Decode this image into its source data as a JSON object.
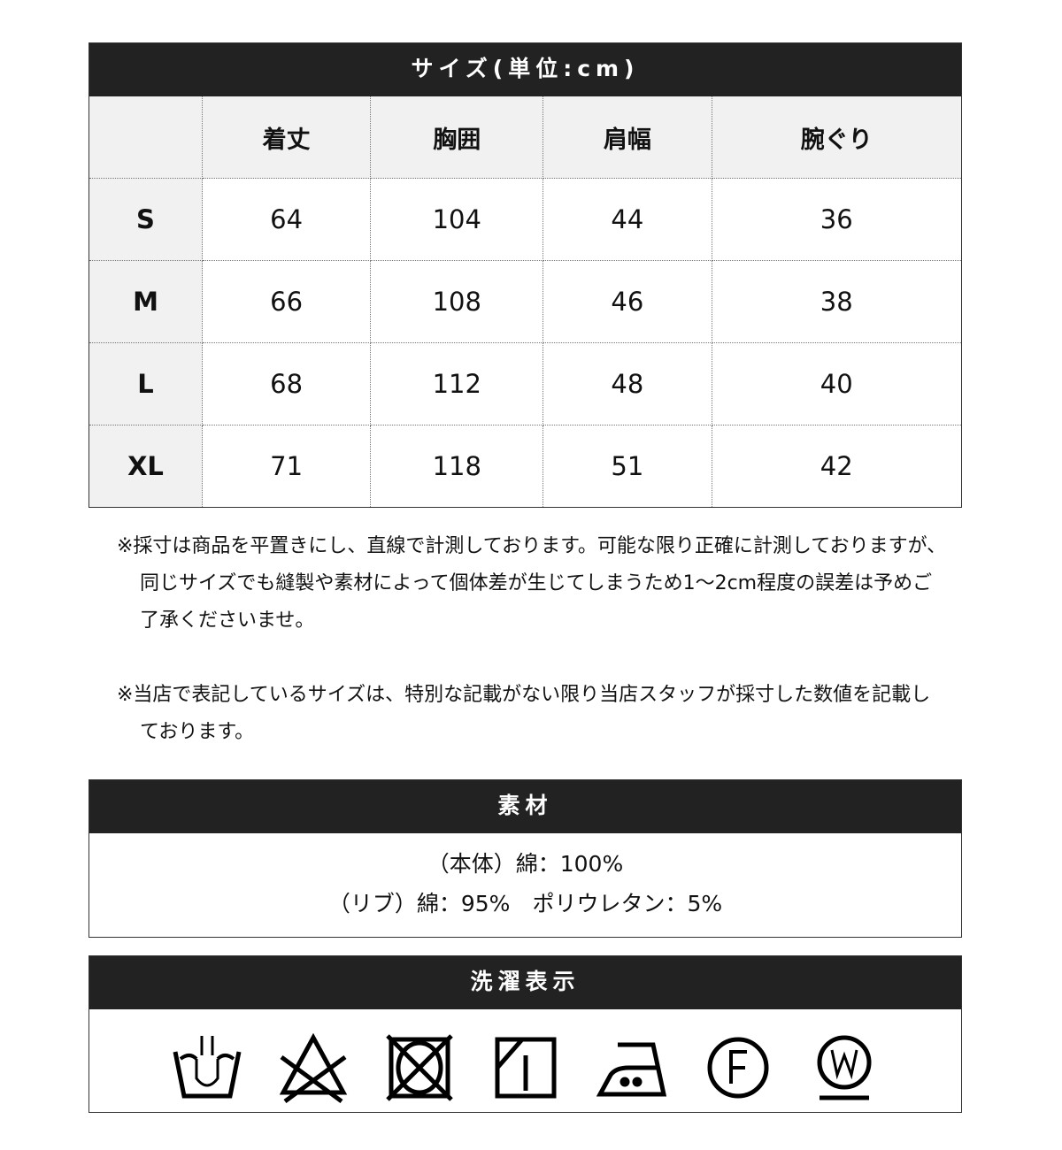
{
  "size_table": {
    "title": "サイズ(単位:cm)",
    "columns": [
      "",
      "着丈",
      "胸囲",
      "肩幅",
      "腕ぐり"
    ],
    "rows": [
      {
        "size": "S",
        "values": [
          "64",
          "104",
          "44",
          "36"
        ]
      },
      {
        "size": "M",
        "values": [
          "66",
          "108",
          "46",
          "38"
        ]
      },
      {
        "size": "L",
        "values": [
          "68",
          "112",
          "48",
          "40"
        ]
      },
      {
        "size": "XL",
        "values": [
          "71",
          "118",
          "51",
          "42"
        ]
      }
    ]
  },
  "notes": [
    "※採寸は商品を平置きにし、直線で計測しております。可能な限り正確に計測しておりますが、同じサイズでも縫製や素材によって個体差が生じてしまうため1～2cm程度の誤差は予めご了承くださいませ。",
    "※当店で表記しているサイズは、特別な記載がない限り当店スタッフが採寸した数値を記載しております。"
  ],
  "material": {
    "title": "素材",
    "lines": [
      "（本体）綿：100%",
      "（リブ）綿：95%　ポリウレタン：5%"
    ]
  },
  "care": {
    "title": "洗濯表示",
    "icons": [
      "hand-wash-icon",
      "no-bleach-icon",
      "no-tumble-dry-icon",
      "drip-dry-shade-icon",
      "iron-medium-icon",
      "dry-clean-f-icon",
      "wet-clean-w-icon"
    ]
  }
}
